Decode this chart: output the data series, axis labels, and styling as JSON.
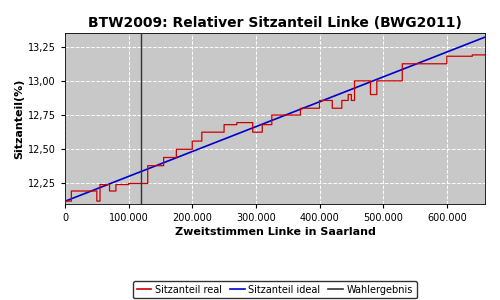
{
  "title": "BTW2009: Relativer Sitzanteil Linke (BWG2011)",
  "xlabel": "Zweitstimmen Linke in Saarland",
  "ylabel": "Sitzanteil(%)",
  "xlim": [
    0,
    660000
  ],
  "ylim": [
    12.1,
    13.35
  ],
  "yticks": [
    12.25,
    12.5,
    12.75,
    13.0,
    13.25
  ],
  "xticks": [
    0,
    100000,
    200000,
    300000,
    400000,
    500000,
    600000
  ],
  "wahlergebnis_x": 120000,
  "ideal_start_y": 12.12,
  "ideal_end_y": 13.32,
  "bg_color": "#c8c8c8",
  "outer_bg": "#ffffff",
  "grid_color": "#ffffff",
  "real_color": "#cc0000",
  "ideal_color": "#0000cc",
  "wahlergebnis_color": "#333333",
  "legend_labels": [
    "Sitzanteil real",
    "Sitzanteil ideal",
    "Wahlergebnis"
  ],
  "steps": [
    [
      0,
      12.121
    ],
    [
      10000,
      12.121
    ],
    [
      10001,
      12.195
    ],
    [
      50000,
      12.195
    ],
    [
      50001,
      12.121
    ],
    [
      55000,
      12.121
    ],
    [
      55001,
      12.242
    ],
    [
      70000,
      12.242
    ],
    [
      70001,
      12.195
    ],
    [
      80000,
      12.195
    ],
    [
      80001,
      12.242
    ],
    [
      100000,
      12.242
    ],
    [
      100001,
      12.25
    ],
    [
      130000,
      12.25
    ],
    [
      130001,
      12.38
    ],
    [
      155000,
      12.38
    ],
    [
      155001,
      12.44
    ],
    [
      175000,
      12.44
    ],
    [
      175001,
      12.5
    ],
    [
      200000,
      12.5
    ],
    [
      200001,
      12.56
    ],
    [
      215000,
      12.56
    ],
    [
      215001,
      12.625
    ],
    [
      250000,
      12.625
    ],
    [
      250001,
      12.68
    ],
    [
      270000,
      12.68
    ],
    [
      270001,
      12.695
    ],
    [
      295000,
      12.695
    ],
    [
      295001,
      12.625
    ],
    [
      310000,
      12.625
    ],
    [
      310001,
      12.68
    ],
    [
      325000,
      12.68
    ],
    [
      325001,
      12.75
    ],
    [
      370000,
      12.75
    ],
    [
      370001,
      12.8
    ],
    [
      400000,
      12.8
    ],
    [
      400001,
      12.857
    ],
    [
      420000,
      12.857
    ],
    [
      420001,
      12.8
    ],
    [
      435000,
      12.8
    ],
    [
      435001,
      12.857
    ],
    [
      445000,
      12.857
    ],
    [
      445001,
      12.9
    ],
    [
      450000,
      12.9
    ],
    [
      450001,
      12.857
    ],
    [
      455000,
      12.857
    ],
    [
      455001,
      13.0
    ],
    [
      480000,
      13.0
    ],
    [
      480001,
      12.9
    ],
    [
      490000,
      12.9
    ],
    [
      490001,
      13.0
    ],
    [
      530000,
      13.0
    ],
    [
      530001,
      13.125
    ],
    [
      600000,
      13.125
    ],
    [
      600001,
      13.18
    ],
    [
      640000,
      13.18
    ],
    [
      640001,
      13.19
    ],
    [
      660000,
      13.19
    ]
  ]
}
